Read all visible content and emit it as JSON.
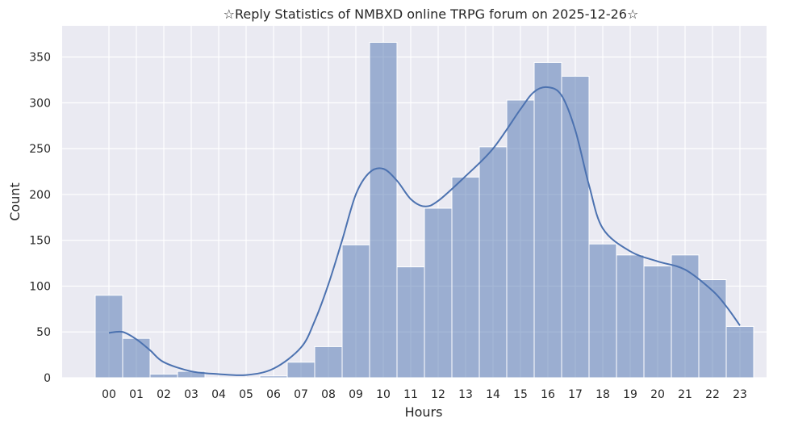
{
  "chart_data": {
    "type": "bar",
    "title": "☆Reply Statistics of NMBXD online TRPG forum on 2025-12-26☆",
    "xlabel": "Hours",
    "ylabel": "Count",
    "categories": [
      "00",
      "01",
      "02",
      "03",
      "04",
      "05",
      "06",
      "07",
      "08",
      "09",
      "10",
      "11",
      "12",
      "13",
      "14",
      "15",
      "16",
      "17",
      "18",
      "19",
      "20",
      "21",
      "22",
      "23"
    ],
    "values": [
      90,
      43,
      4,
      7,
      0,
      0,
      2,
      17,
      34,
      145,
      366,
      121,
      185,
      219,
      252,
      303,
      344,
      329,
      146,
      134,
      122,
      134,
      107,
      56
    ],
    "yticks": [
      0,
      50,
      100,
      150,
      200,
      250,
      300,
      350
    ],
    "ylim": [
      0,
      384
    ],
    "grid": true,
    "kde": {
      "x": [
        0,
        0.5,
        1,
        1.5,
        2,
        3,
        4,
        5,
        6,
        7,
        7.5,
        8,
        8.5,
        9,
        9.5,
        10,
        10.5,
        11,
        11.5,
        12,
        13,
        14,
        15,
        15.5,
        16,
        16.5,
        17,
        17.5,
        18,
        19,
        20,
        21,
        22,
        22.5,
        23
      ],
      "y": [
        49,
        50,
        42,
        30,
        17,
        7,
        4,
        3,
        10,
        33,
        62,
        102,
        150,
        200,
        224,
        228,
        215,
        195,
        187,
        193,
        220,
        250,
        293,
        312,
        317,
        308,
        270,
        210,
        163,
        138,
        127,
        118,
        95,
        78,
        57
      ]
    },
    "colors": {
      "bar": "#4c72b0",
      "line": "#4c72b0",
      "background": "#eaeaf2",
      "grid": "#ffffff"
    }
  }
}
